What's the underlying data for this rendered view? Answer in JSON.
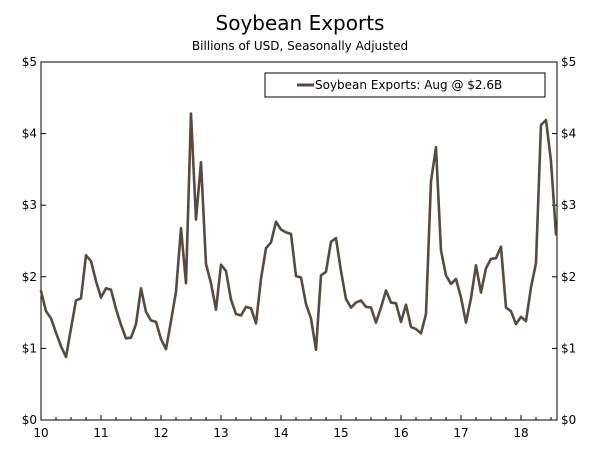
{
  "chart_data": {
    "type": "line",
    "title": "Soybean Exports",
    "subtitle": "Billions of USD, Seasonally Adjusted",
    "xlabel": "",
    "ylabel": "",
    "xlim": [
      10,
      18.6
    ],
    "ylim": [
      0,
      5
    ],
    "x_ticks": [
      10,
      11,
      12,
      13,
      14,
      15,
      16,
      17,
      18
    ],
    "x_tick_labels": [
      "10",
      "11",
      "12",
      "13",
      "14",
      "15",
      "16",
      "17",
      "18"
    ],
    "y_ticks": [
      0,
      1,
      2,
      3,
      4,
      5
    ],
    "y_tick_labels": [
      "$0",
      "$1",
      "$2",
      "$3",
      "$4",
      "$5"
    ],
    "grid": false,
    "legend_position": "top-right",
    "series": [
      {
        "name": "Soybean Exports: Aug @ $2.6B",
        "color": "#574b40",
        "x_start": 10,
        "step": 0.08333,
        "values": [
          1.8,
          1.52,
          1.42,
          1.22,
          1.03,
          0.88,
          1.28,
          1.67,
          1.7,
          2.3,
          2.22,
          1.94,
          1.71,
          1.84,
          1.82,
          1.55,
          1.33,
          1.14,
          1.15,
          1.34,
          1.84,
          1.51,
          1.39,
          1.37,
          1.13,
          0.99,
          1.38,
          1.79,
          2.68,
          1.91,
          4.28,
          2.8,
          3.6,
          2.18,
          1.91,
          1.54,
          2.17,
          2.08,
          1.68,
          1.48,
          1.46,
          1.58,
          1.56,
          1.35,
          1.97,
          2.4,
          2.48,
          2.77,
          2.66,
          2.62,
          2.6,
          2.01,
          1.99,
          1.62,
          1.42,
          0.98,
          2.02,
          2.07,
          2.49,
          2.54,
          2.08,
          1.69,
          1.57,
          1.64,
          1.67,
          1.58,
          1.57,
          1.36,
          1.57,
          1.81,
          1.64,
          1.63,
          1.37,
          1.61,
          1.3,
          1.27,
          1.21,
          1.48,
          3.33,
          3.81,
          2.37,
          2.02,
          1.9,
          1.97,
          1.71,
          1.36,
          1.7,
          2.16,
          1.78,
          2.12,
          2.25,
          2.26,
          2.42,
          1.57,
          1.52,
          1.34,
          1.44,
          1.38,
          1.85,
          2.19,
          4.12,
          4.19,
          3.62,
          2.59
        ]
      }
    ]
  }
}
